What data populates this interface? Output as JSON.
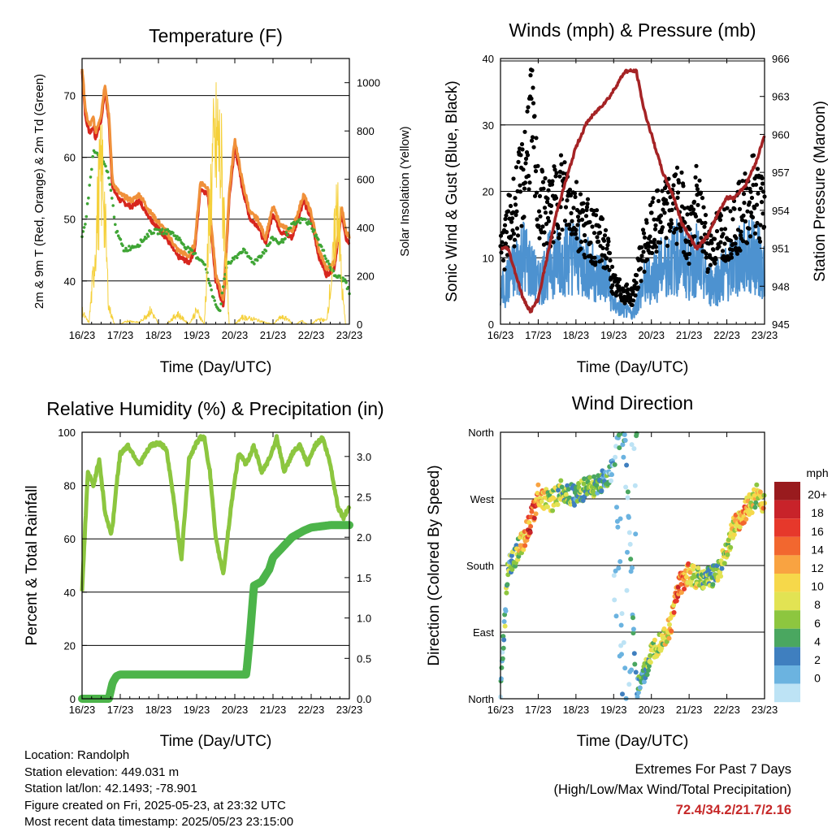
{
  "chart_data": [
    {
      "id": "temperature",
      "type": "line",
      "title": "Temperature (F)",
      "xlabel": "Time (Day/UTC)",
      "ylabel_left": "2m & 9m T (Red, Orange) & 2m Td (Green)",
      "ylabel_right": "Solar Insolation (Yellow)",
      "x_ticks": [
        "16/23",
        "17/23",
        "18/23",
        "19/23",
        "20/23",
        "21/23",
        "22/23",
        "23/23"
      ],
      "ylim_left": [
        33,
        76
      ],
      "yticks_left": [
        40,
        50,
        60,
        70
      ],
      "ylim_right": [
        0,
        1100
      ],
      "yticks_right": [
        0,
        200,
        400,
        600,
        800,
        1000
      ],
      "grid": true,
      "series": [
        {
          "name": "2m T",
          "axis": "left",
          "color": "#d7261e",
          "x": [
            0,
            0.1,
            0.2,
            0.3,
            0.35,
            0.5,
            0.6,
            0.7,
            0.8,
            1.0,
            1.3,
            1.5,
            1.8,
            2.2,
            2.5,
            2.8,
            2.95,
            3.1,
            3.3,
            3.5,
            3.7,
            3.85,
            4.0,
            4.2,
            4.4,
            4.6,
            4.8,
            5.0,
            5.2,
            5.5,
            5.8,
            6.0,
            6.2,
            6.4,
            6.6,
            6.8,
            6.9,
            7.0
          ],
          "values": [
            74,
            66,
            64,
            65,
            63,
            66,
            71,
            66,
            55,
            53,
            52,
            53,
            50,
            47,
            44,
            43,
            45,
            55,
            54,
            40,
            36,
            53,
            62,
            55,
            50,
            49,
            46,
            51,
            48,
            47,
            53,
            50,
            44,
            41,
            42,
            51,
            47,
            46
          ]
        },
        {
          "name": "9m T",
          "axis": "left",
          "color": "#f0903a",
          "x": [
            0,
            0.1,
            0.2,
            0.3,
            0.35,
            0.5,
            0.6,
            0.7,
            0.8,
            1.0,
            1.3,
            1.5,
            1.8,
            2.2,
            2.5,
            2.8,
            2.95,
            3.1,
            3.3,
            3.5,
            3.7,
            3.85,
            4.0,
            4.2,
            4.4,
            4.6,
            4.8,
            5.0,
            5.2,
            5.5,
            5.8,
            6.0,
            6.2,
            6.4,
            6.6,
            6.8,
            6.9,
            7.0
          ],
          "values": [
            74.5,
            67,
            65,
            66.5,
            64,
            67,
            72,
            67,
            56,
            54,
            53,
            54,
            51,
            48,
            45,
            44,
            46,
            56,
            55,
            41,
            37,
            54,
            63,
            56,
            51,
            50,
            47,
            52,
            49,
            48,
            54,
            51,
            45,
            42,
            43,
            52,
            48,
            47
          ]
        },
        {
          "name": "2m Td",
          "axis": "left",
          "color": "#3fa535",
          "x": [
            0,
            0.1,
            0.3,
            0.5,
            0.7,
            0.9,
            1.1,
            1.5,
            1.8,
            2.0,
            2.3,
            2.5,
            2.8,
            3.0,
            3.2,
            3.4,
            3.6,
            3.8,
            3.9,
            4.2,
            4.5,
            4.8,
            5.0,
            5.2,
            5.5,
            5.8,
            6.0,
            6.3,
            6.6,
            6.9,
            7.0
          ],
          "values": [
            47,
            50,
            61,
            60,
            57,
            48,
            45,
            46,
            48,
            48,
            48,
            47,
            45,
            44,
            43,
            38,
            35,
            43,
            43,
            45,
            43,
            45,
            47,
            46,
            49,
            50,
            49,
            45,
            41,
            40,
            38
          ]
        },
        {
          "name": "Solar Insolation",
          "axis": "right",
          "color": "#f5d03a",
          "x": [
            0,
            0.08,
            0.18,
            0.3,
            0.45,
            0.55,
            0.62,
            0.7,
            0.85,
            1.0,
            1.2,
            1.5,
            1.8,
            2.0,
            2.2,
            2.5,
            2.8,
            3.0,
            3.2,
            3.4,
            3.55,
            3.65,
            3.75,
            3.85,
            4.0,
            4.2,
            4.5,
            4.8,
            5.0,
            5.2,
            5.4,
            5.5,
            5.6,
            5.75,
            5.9,
            6.0,
            6.2,
            6.4,
            6.55,
            6.7,
            6.8,
            6.9,
            7.0
          ],
          "values": [
            80,
            40,
            10,
            300,
            800,
            900,
            500,
            100,
            0,
            0,
            20,
            10,
            80,
            0,
            0,
            60,
            0,
            80,
            0,
            900,
            1080,
            900,
            500,
            0,
            0,
            40,
            30,
            10,
            0,
            40,
            30,
            0,
            0,
            20,
            0,
            0,
            30,
            20,
            300,
            780,
            220,
            0,
            0
          ]
        }
      ]
    },
    {
      "id": "winds",
      "type": "scatter",
      "title": "Winds (mph) & Pressure (mb)",
      "xlabel": "Time (Day/UTC)",
      "ylabel_left": "Sonic Wind & Gust (Blue, Black)",
      "ylabel_right": "Station Pressure (Maroon)",
      "x_ticks": [
        "16/23",
        "17/23",
        "18/23",
        "19/23",
        "20/23",
        "21/23",
        "22/23",
        "23/23"
      ],
      "ylim_left": [
        0,
        40
      ],
      "yticks_left": [
        0,
        10,
        20,
        30,
        40
      ],
      "ylim_right": [
        945,
        966
      ],
      "yticks_right": [
        945,
        948,
        951,
        954,
        957,
        960,
        963,
        966
      ],
      "grid": true,
      "series": [
        {
          "name": "Sonic Wind",
          "axis": "left",
          "color": "#4d92d0",
          "x": [
            0,
            0.3,
            0.6,
            0.8,
            1.0,
            1.3,
            1.6,
            1.9,
            2.2,
            2.5,
            2.8,
            3.0,
            3.2,
            3.5,
            3.8,
            4.1,
            4.4,
            4.6,
            4.8,
            5.0,
            5.2,
            5.5,
            5.8,
            6.1,
            6.4,
            6.7,
            7.0
          ],
          "values": [
            6,
            10,
            14,
            11,
            8,
            12,
            13,
            14,
            12,
            10,
            9,
            4,
            3,
            2,
            8,
            10,
            12,
            13,
            14,
            11,
            13,
            8,
            9,
            11,
            13,
            14,
            11
          ]
        },
        {
          "name": "Gust",
          "axis": "left",
          "color": "#000000",
          "x": [
            0,
            0.3,
            0.6,
            0.8,
            1.0,
            1.3,
            1.6,
            1.9,
            2.2,
            2.5,
            2.8,
            3.0,
            3.2,
            3.5,
            3.8,
            4.1,
            4.4,
            4.6,
            4.8,
            5.0,
            5.2,
            5.5,
            5.8,
            6.1,
            6.4,
            6.7,
            7.0
          ],
          "values": [
            12,
            20,
            26,
            38,
            22,
            20,
            24,
            22,
            18,
            16,
            14,
            7,
            6,
            5,
            14,
            18,
            20,
            22,
            21,
            16,
            22,
            14,
            16,
            18,
            20,
            24,
            20
          ]
        },
        {
          "name": "Station Pressure",
          "axis": "right",
          "color": "#a52325",
          "x": [
            0,
            0.2,
            0.4,
            0.6,
            0.8,
            1.0,
            1.5,
            2.0,
            2.3,
            2.6,
            2.9,
            3.1,
            3.3,
            3.6,
            3.8,
            4.0,
            4.3,
            4.6,
            4.8,
            5.0,
            5.2,
            5.5,
            5.8,
            6.0,
            6.2,
            6.5,
            6.8,
            7.0
          ],
          "values": [
            951,
            951,
            949,
            947,
            946,
            947,
            954,
            959,
            961,
            962,
            963,
            964,
            965,
            965,
            962,
            960,
            957,
            955,
            953,
            952,
            951,
            952,
            954,
            955,
            955,
            956,
            958,
            960
          ]
        }
      ]
    },
    {
      "id": "humidity",
      "type": "line",
      "title": "Relative Humidity (%) & Precipitation (in)",
      "xlabel": "Time (Day/UTC)",
      "ylabel_left": "Percent & Total Rainfall",
      "ylim_left": [
        0,
        100
      ],
      "yticks_left": [
        0,
        20,
        40,
        60,
        80,
        100
      ],
      "ylim_right": [
        0,
        3.3
      ],
      "yticks_right": [
        "0.0",
        "0.5",
        "1.0",
        "1.5",
        "2.0",
        "2.5",
        "3.0"
      ],
      "x_ticks": [
        "16/23",
        "17/23",
        "18/23",
        "19/23",
        "20/23",
        "21/23",
        "22/23",
        "23/23"
      ],
      "grid": true,
      "series": [
        {
          "name": "Relative Humidity",
          "axis": "left",
          "color": "#8cc63f",
          "x": [
            0,
            0.05,
            0.15,
            0.3,
            0.45,
            0.6,
            0.75,
            0.8,
            0.9,
            1.0,
            1.2,
            1.5,
            1.8,
            2.0,
            2.2,
            2.4,
            2.6,
            2.8,
            3.0,
            3.1,
            3.2,
            3.35,
            3.5,
            3.7,
            3.9,
            4.1,
            4.3,
            4.5,
            4.7,
            4.9,
            5.1,
            5.3,
            5.5,
            5.7,
            5.9,
            6.1,
            6.3,
            6.5,
            6.7,
            6.85,
            7.0
          ],
          "values": [
            40,
            55,
            85,
            80,
            90,
            70,
            62,
            65,
            80,
            92,
            95,
            88,
            95,
            96,
            94,
            75,
            52,
            90,
            96,
            98,
            98,
            85,
            60,
            47,
            72,
            92,
            88,
            95,
            85,
            90,
            98,
            85,
            92,
            95,
            88,
            95,
            98,
            88,
            72,
            68,
            72
          ]
        },
        {
          "name": "Total Precipitation",
          "axis": "right",
          "color": "#4cb44a",
          "x": [
            0,
            0.7,
            0.8,
            0.9,
            1.0,
            2.0,
            3.0,
            4.0,
            4.3,
            4.4,
            4.5,
            4.7,
            4.9,
            5.0,
            5.2,
            5.5,
            5.8,
            6.0,
            6.5,
            7.0
          ],
          "values": [
            0,
            0,
            0.2,
            0.28,
            0.3,
            0.3,
            0.3,
            0.3,
            0.3,
            0.8,
            1.4,
            1.45,
            1.6,
            1.75,
            1.85,
            2.0,
            2.08,
            2.12,
            2.15,
            2.15
          ]
        }
      ]
    },
    {
      "id": "wind_direction",
      "type": "scatter",
      "title": "Wind Direction",
      "xlabel": "Time (Day/UTC)",
      "ylabel": "Direction (Colored By Speed)",
      "x_ticks": [
        "16/23",
        "17/23",
        "18/23",
        "19/23",
        "20/23",
        "21/23",
        "22/23",
        "23/23"
      ],
      "y_ticks": [
        "North",
        "East",
        "South",
        "West",
        "North"
      ],
      "y_tick_values": [
        0,
        90,
        180,
        270,
        360
      ],
      "grid": true,
      "legend": {
        "title": "mph",
        "labels": [
          "20+",
          "18",
          "16",
          "14",
          "12",
          "10",
          "8",
          "6",
          "4",
          "2",
          "0"
        ],
        "colors": [
          "#991b1e",
          "#c8232a",
          "#e6382b",
          "#f2672f",
          "#f9a341",
          "#f6d84a",
          "#e2e353",
          "#8dc63f",
          "#4aa760",
          "#3f7fbf",
          "#6bb3e0",
          "#bde3f5"
        ],
        "placement": "right"
      },
      "series": [
        {
          "name": "Direction",
          "x": [
            0,
            0.2,
            0.4,
            0.6,
            0.8,
            1.0,
            1.3,
            1.6,
            2.0,
            2.3,
            2.6,
            2.9,
            3.1,
            3.3,
            3.6,
            3.8,
            4.0,
            4.2,
            4.5,
            4.7,
            5.0,
            5.3,
            5.6,
            5.8,
            6.0,
            6.2,
            6.5,
            6.8,
            7.0
          ],
          "values": [
            15,
            175,
            195,
            215,
            240,
            275,
            265,
            280,
            275,
            285,
            290,
            300,
            340,
            360,
            10,
            30,
            60,
            75,
            95,
            150,
            170,
            160,
            165,
            175,
            200,
            235,
            255,
            275,
            265
          ],
          "speed": [
            4,
            6,
            8,
            12,
            18,
            14,
            10,
            8,
            6,
            8,
            6,
            4,
            2,
            2,
            4,
            6,
            8,
            10,
            12,
            16,
            14,
            8,
            6,
            8,
            10,
            12,
            14,
            10,
            12
          ]
        }
      ]
    }
  ],
  "footer": {
    "location": "Location: Randolph",
    "elevation": "Station elevation: 449.031 m",
    "latlon": "Station lat/lon: 42.1493; -78.901",
    "created": "Figure created on Fri, 2025-05-23, at 23:32 UTC",
    "recent": "Most recent data timestamp: 2025/05/23 23:15:00",
    "extremes_title": "Extremes For Past 7 Days",
    "extremes_subtitle": "(High/Low/Max Wind/Total Precipitation)",
    "extremes_values": "72.4/34.2/21.7/2.16"
  }
}
